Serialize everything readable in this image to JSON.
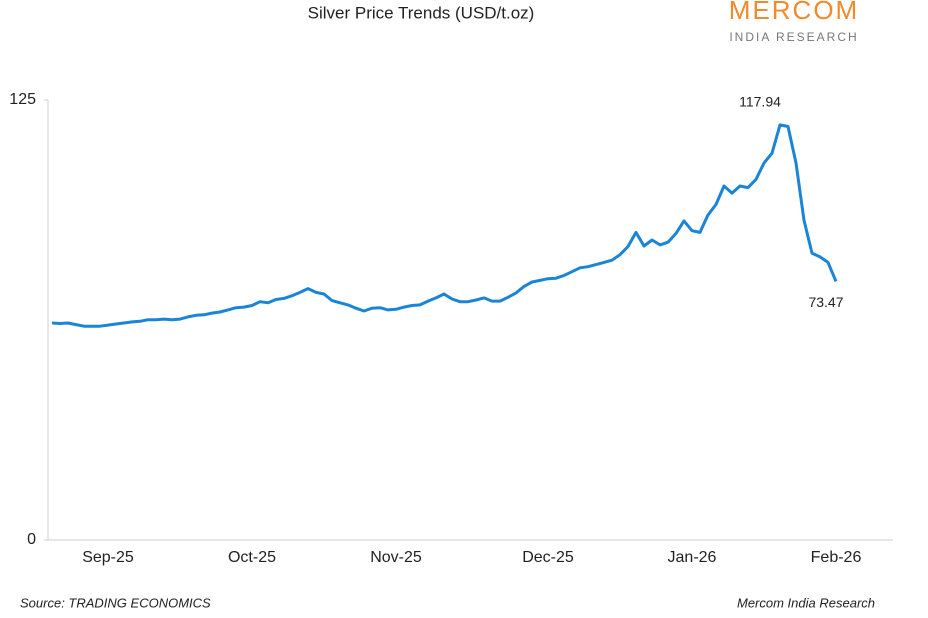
{
  "chart_data": {
    "type": "line",
    "title": "Silver Price Trends (USD/t.oz)",
    "logo_name": "MERCOM",
    "logo_tagline": "INDIA RESEARCH",
    "source": "Source: TRADING ECONOMICS",
    "credit": "Mercom India Research",
    "categories": [
      null,
      null,
      null,
      null,
      null,
      null,
      null,
      "Sep-25",
      null,
      null,
      null,
      null,
      null,
      null,
      null,
      null,
      null,
      null,
      null,
      null,
      null,
      null,
      null,
      null,
      null,
      "Oct-25",
      null,
      null,
      null,
      null,
      null,
      null,
      null,
      null,
      null,
      null,
      null,
      null,
      null,
      null,
      null,
      null,
      null,
      "Nov-25",
      null,
      null,
      null,
      null,
      null,
      null,
      null,
      null,
      null,
      null,
      null,
      null,
      null,
      null,
      null,
      null,
      null,
      null,
      "Dec-25",
      null,
      null,
      null,
      null,
      null,
      null,
      null,
      null,
      null,
      null,
      null,
      null,
      null,
      null,
      null,
      null,
      null,
      "Jan-26",
      null,
      null,
      null,
      null,
      null,
      null,
      null,
      null,
      null,
      null,
      null,
      null,
      null,
      null,
      null,
      null,
      null,
      "Feb-26"
    ],
    "values": [
      61.66,
      61.51,
      61.66,
      61.2,
      60.73,
      60.73,
      60.73,
      61.04,
      61.35,
      61.66,
      61.97,
      62.13,
      62.59,
      62.59,
      62.75,
      62.59,
      62.75,
      63.37,
      63.83,
      63.99,
      64.45,
      64.76,
      65.38,
      66.0,
      66.16,
      66.62,
      67.71,
      67.4,
      68.33,
      68.64,
      69.41,
      70.34,
      71.43,
      70.34,
      69.88,
      68.02,
      67.4,
      66.78,
      65.85,
      65.07,
      65.85,
      66.0,
      65.38,
      65.54,
      66.16,
      66.62,
      66.78,
      67.86,
      68.79,
      69.88,
      68.48,
      67.71,
      67.71,
      68.17,
      68.79,
      67.86,
      67.86,
      68.95,
      70.19,
      72.05,
      73.29,
      73.75,
      74.22,
      74.37,
      75.15,
      76.23,
      77.32,
      77.63,
      78.25,
      78.87,
      79.49,
      81.04,
      83.37,
      87.4,
      83.52,
      85.23,
      83.83,
      84.61,
      87.09,
      90.65,
      87.86,
      87.4,
      92.36,
      95.3,
      100.58,
      98.56,
      100.58,
      100.11,
      102.44,
      107.09,
      109.88,
      117.94,
      117.47,
      107.09,
      90.81,
      81.51,
      80.42,
      78.87,
      73.47
    ],
    "color": "#1a85d6",
    "ylim": [
      0,
      125
    ],
    "yticks": [
      0,
      125
    ],
    "grid": false
  }
}
